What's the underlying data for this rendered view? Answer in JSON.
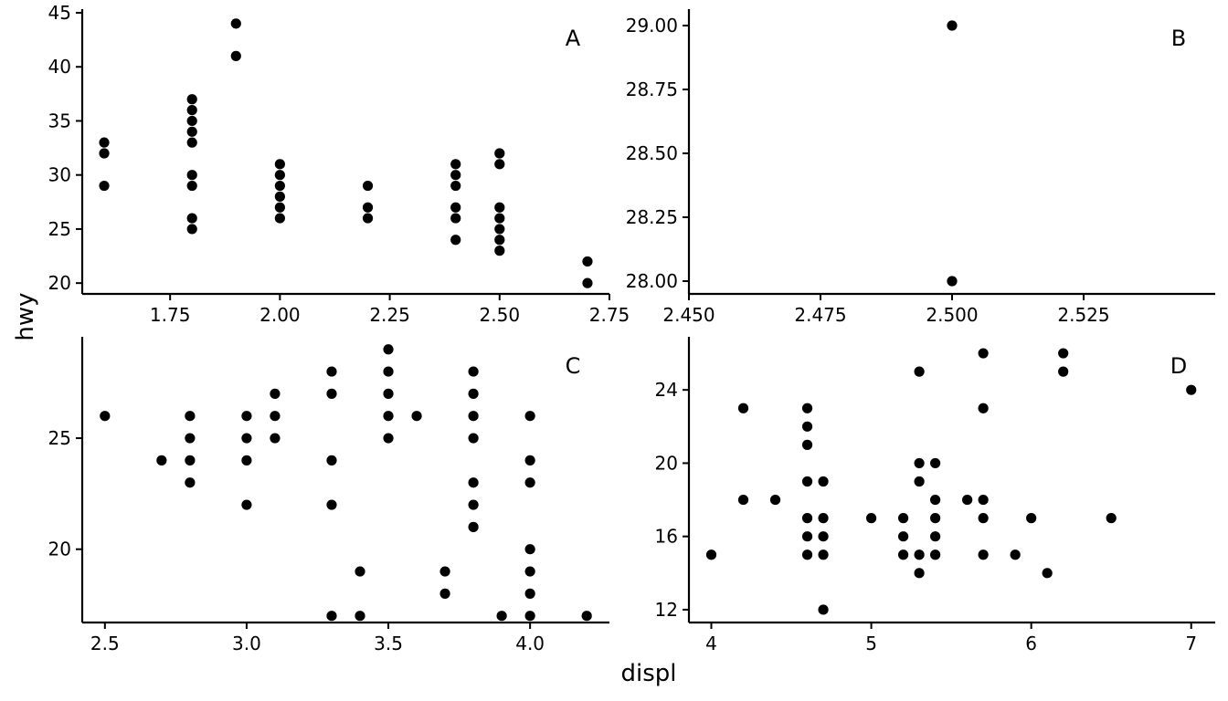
{
  "figure": {
    "xlabel": "displ",
    "ylabel": "hwy",
    "point_color": "#000000",
    "background": "#ffffff"
  },
  "chart_data": [
    {
      "type": "scatter",
      "panel": "A",
      "xlim": [
        1.55,
        2.75
      ],
      "ylim": [
        19,
        45
      ],
      "xticks": [
        "1.75",
        "2.00",
        "2.25",
        "2.50",
        "2.75"
      ],
      "yticks": [
        "20",
        "25",
        "30",
        "35",
        "40",
        "45"
      ],
      "points": [
        [
          1.6,
          33
        ],
        [
          1.6,
          32
        ],
        [
          1.6,
          29
        ],
        [
          1.8,
          37
        ],
        [
          1.8,
          36
        ],
        [
          1.8,
          35
        ],
        [
          1.8,
          34
        ],
        [
          1.8,
          33
        ],
        [
          1.8,
          30
        ],
        [
          1.8,
          29
        ],
        [
          1.8,
          26
        ],
        [
          1.8,
          25
        ],
        [
          1.9,
          44
        ],
        [
          1.9,
          41
        ],
        [
          2.0,
          31
        ],
        [
          2.0,
          30
        ],
        [
          2.0,
          29
        ],
        [
          2.0,
          28
        ],
        [
          2.0,
          27
        ],
        [
          2.0,
          26
        ],
        [
          2.2,
          29
        ],
        [
          2.2,
          27
        ],
        [
          2.2,
          26
        ],
        [
          2.4,
          31
        ],
        [
          2.4,
          30
        ],
        [
          2.4,
          29
        ],
        [
          2.4,
          27
        ],
        [
          2.4,
          26
        ],
        [
          2.4,
          24
        ],
        [
          2.5,
          32
        ],
        [
          2.5,
          31
        ],
        [
          2.5,
          27
        ],
        [
          2.5,
          26
        ],
        [
          2.5,
          25
        ],
        [
          2.5,
          24
        ],
        [
          2.5,
          23
        ],
        [
          2.7,
          22
        ],
        [
          2.7,
          20
        ]
      ]
    },
    {
      "type": "scatter",
      "panel": "B",
      "xlim": [
        2.45,
        2.55
      ],
      "ylim": [
        27.95,
        29.05
      ],
      "xticks": [
        "2.450",
        "2.475",
        "2.500",
        "2.525"
      ],
      "yticks": [
        "28.00",
        "28.25",
        "28.50",
        "28.75",
        "29.00"
      ],
      "points": [
        [
          2.5,
          29
        ],
        [
          2.5,
          28
        ]
      ]
    },
    {
      "type": "scatter",
      "panel": "C",
      "xlim": [
        2.42,
        4.28
      ],
      "ylim": [
        16.7,
        29.4
      ],
      "xticks": [
        "2.5",
        "3.0",
        "3.5",
        "4.0"
      ],
      "yticks": [
        "20",
        "25"
      ],
      "points": [
        [
          2.5,
          26
        ],
        [
          2.7,
          24
        ],
        [
          2.8,
          26
        ],
        [
          2.8,
          25
        ],
        [
          2.8,
          24
        ],
        [
          2.8,
          23
        ],
        [
          3.0,
          26
        ],
        [
          3.0,
          25
        ],
        [
          3.0,
          24
        ],
        [
          3.0,
          22
        ],
        [
          3.1,
          27
        ],
        [
          3.1,
          26
        ],
        [
          3.1,
          25
        ],
        [
          3.3,
          28
        ],
        [
          3.3,
          27
        ],
        [
          3.3,
          24
        ],
        [
          3.3,
          22
        ],
        [
          3.3,
          17
        ],
        [
          3.4,
          19
        ],
        [
          3.4,
          17
        ],
        [
          3.5,
          29
        ],
        [
          3.5,
          28
        ],
        [
          3.5,
          27
        ],
        [
          3.5,
          26
        ],
        [
          3.5,
          25
        ],
        [
          3.6,
          26
        ],
        [
          3.7,
          19
        ],
        [
          3.7,
          18
        ],
        [
          3.8,
          28
        ],
        [
          3.8,
          27
        ],
        [
          3.8,
          26
        ],
        [
          3.8,
          25
        ],
        [
          3.8,
          23
        ],
        [
          3.8,
          22
        ],
        [
          3.8,
          21
        ],
        [
          3.9,
          17
        ],
        [
          4.0,
          26
        ],
        [
          4.0,
          24
        ],
        [
          4.0,
          23
        ],
        [
          4.0,
          20
        ],
        [
          4.0,
          19
        ],
        [
          4.0,
          18
        ],
        [
          4.0,
          17
        ],
        [
          4.2,
          17
        ]
      ]
    },
    {
      "type": "scatter",
      "panel": "D",
      "xlim": [
        3.86,
        7.15
      ],
      "ylim": [
        11.3,
        26.7
      ],
      "xticks": [
        "4",
        "5",
        "6",
        "7"
      ],
      "yticks": [
        "12",
        "16",
        "20",
        "24"
      ],
      "points": [
        [
          4.0,
          15
        ],
        [
          4.2,
          23
        ],
        [
          4.2,
          18
        ],
        [
          4.4,
          18
        ],
        [
          4.6,
          23
        ],
        [
          4.6,
          22
        ],
        [
          4.6,
          21
        ],
        [
          4.6,
          19
        ],
        [
          4.6,
          17
        ],
        [
          4.6,
          16
        ],
        [
          4.6,
          15
        ],
        [
          4.7,
          19
        ],
        [
          4.7,
          17
        ],
        [
          4.7,
          16
        ],
        [
          4.7,
          15
        ],
        [
          4.7,
          12
        ],
        [
          5.0,
          17
        ],
        [
          5.2,
          17
        ],
        [
          5.2,
          16
        ],
        [
          5.2,
          15
        ],
        [
          5.3,
          25
        ],
        [
          5.3,
          20
        ],
        [
          5.3,
          19
        ],
        [
          5.3,
          15
        ],
        [
          5.3,
          14
        ],
        [
          5.4,
          20
        ],
        [
          5.4,
          18
        ],
        [
          5.4,
          17
        ],
        [
          5.4,
          16
        ],
        [
          5.4,
          15
        ],
        [
          5.6,
          18
        ],
        [
          5.7,
          26
        ],
        [
          5.7,
          23
        ],
        [
          5.7,
          18
        ],
        [
          5.7,
          17
        ],
        [
          5.7,
          15
        ],
        [
          5.9,
          15
        ],
        [
          6.0,
          17
        ],
        [
          6.1,
          14
        ],
        [
          6.2,
          26
        ],
        [
          6.2,
          25
        ],
        [
          6.5,
          17
        ],
        [
          7.0,
          24
        ]
      ]
    }
  ]
}
